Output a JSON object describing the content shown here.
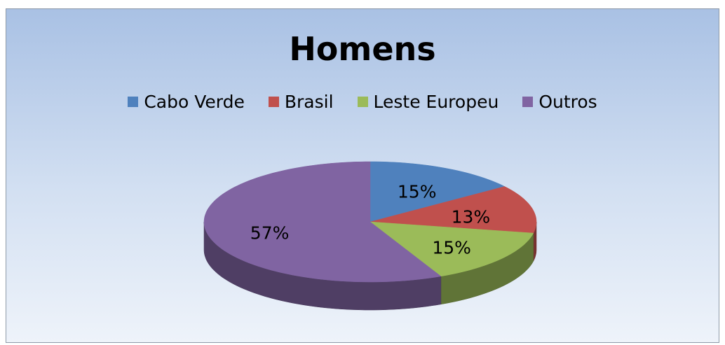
{
  "chart_data": {
    "type": "pie",
    "title": "Homens",
    "categories": [
      "Cabo Verde",
      "Brasil",
      "Leste Europeu",
      "Outros"
    ],
    "values": [
      15,
      13,
      15,
      57
    ],
    "value_labels": [
      "15%",
      "13%",
      "15%",
      "57%"
    ],
    "colors": [
      "#4f81bd",
      "#c0504d",
      "#9bbb59",
      "#8064a2"
    ],
    "legend": "top"
  }
}
